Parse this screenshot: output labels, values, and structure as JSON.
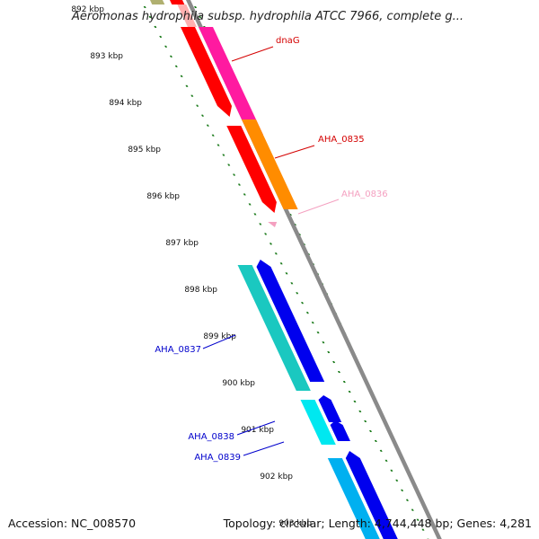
{
  "title": "Aeromonas hydrophila subsp. hydrophila ATCC 7966, complete g...",
  "footer": {
    "accession": "Accession: NC_008570",
    "topology": "Topology: circular; Length: 4,744,448 bp; Genes: 4,281"
  },
  "kbp_ticks": [
    "892 kbp",
    "893 kbp",
    "894 kbp",
    "895 kbp",
    "896 kbp",
    "897 kbp",
    "898 kbp",
    "899 kbp",
    "900 kbp",
    "901 kbp",
    "902 kbp",
    "903 kbp"
  ],
  "gene_labels": [
    {
      "text": "dnaG",
      "color": "#d40000"
    },
    {
      "text": "AHA_0835",
      "color": "#d40000"
    },
    {
      "text": "AHA_0836",
      "color": "#f4a0c0"
    },
    {
      "text": "AHA_0837",
      "color": "#0000cc"
    },
    {
      "text": "AHA_0838",
      "color": "#0000cc"
    },
    {
      "text": "AHA_0839",
      "color": "#0000cc"
    }
  ],
  "colors": {
    "backbone": "#8a8a8a",
    "tick": "#1a7a1a",
    "red": "#ff0000",
    "magenta": "#ff1aa0",
    "orange": "#ff8c00",
    "pink": "#f4a0c0",
    "teal": "#1ac8c0",
    "blue": "#0000ee",
    "cyan": "#00e8f0",
    "skyblue": "#00b0f0",
    "olive": "#b0b070",
    "lightpink": "#ffb0b0"
  }
}
